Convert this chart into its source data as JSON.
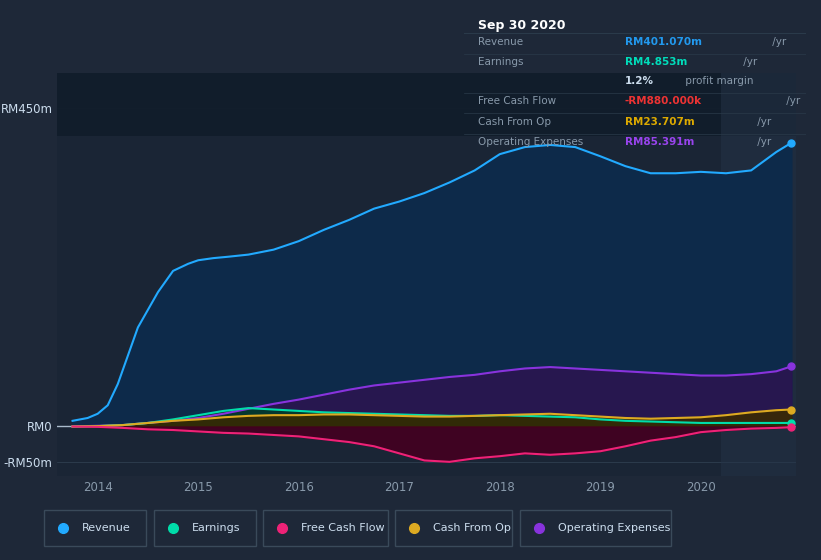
{
  "bg_color": "#1e2838",
  "plot_bg_color": "#1a2535",
  "text_color": "#8899aa",
  "ylim": [
    -70,
    500
  ],
  "ytick_positions": [
    -50,
    0,
    450
  ],
  "ytick_labels": [
    "-RM50m",
    "RM0",
    "RM450m"
  ],
  "xtick_positions": [
    2014,
    2015,
    2016,
    2017,
    2018,
    2019,
    2020
  ],
  "xlim": [
    2013.6,
    2020.95
  ],
  "info_box": {
    "title": "Sep 30 2020",
    "rows": [
      {
        "label": "Revenue",
        "value": "RM401.070m",
        "unit": " /yr",
        "val_color": "#2299ee"
      },
      {
        "label": "Earnings",
        "value": "RM4.853m",
        "unit": " /yr",
        "val_color": "#00ddbb"
      },
      {
        "label": "",
        "value": "1.2%",
        "unit": " profit margin",
        "val_color": "#ccddee"
      },
      {
        "label": "Free Cash Flow",
        "value": "-RM880.000k",
        "unit": " /yr",
        "val_color": "#ee3333"
      },
      {
        "label": "Cash From Op",
        "value": "RM23.707m",
        "unit": " /yr",
        "val_color": "#ddaa00"
      },
      {
        "label": "Operating Expenses",
        "value": "RM85.391m",
        "unit": " /yr",
        "val_color": "#9944ee"
      }
    ]
  },
  "revenue": {
    "color": "#22aaff",
    "fill": "#0d2a4a",
    "x": [
      2013.75,
      2013.9,
      2014.0,
      2014.1,
      2014.2,
      2014.4,
      2014.6,
      2014.75,
      2014.9,
      2015.0,
      2015.15,
      2015.3,
      2015.5,
      2015.75,
      2016.0,
      2016.25,
      2016.5,
      2016.75,
      2017.0,
      2017.25,
      2017.5,
      2017.75,
      2018.0,
      2018.25,
      2018.5,
      2018.75,
      2019.0,
      2019.25,
      2019.5,
      2019.75,
      2020.0,
      2020.25,
      2020.5,
      2020.75,
      2020.9
    ],
    "y": [
      8,
      12,
      18,
      30,
      60,
      140,
      190,
      220,
      230,
      235,
      238,
      240,
      243,
      250,
      262,
      278,
      292,
      308,
      318,
      330,
      345,
      362,
      385,
      395,
      398,
      395,
      382,
      368,
      358,
      358,
      360,
      358,
      362,
      388,
      401
    ]
  },
  "operating_expenses": {
    "color": "#8833dd",
    "fill": "#2a1550",
    "x": [
      2013.75,
      2014.0,
      2014.25,
      2014.5,
      2014.75,
      2015.0,
      2015.25,
      2015.5,
      2015.75,
      2016.0,
      2016.25,
      2016.5,
      2016.75,
      2017.0,
      2017.25,
      2017.5,
      2017.75,
      2018.0,
      2018.25,
      2018.5,
      2018.75,
      2019.0,
      2019.25,
      2019.5,
      2019.75,
      2020.0,
      2020.25,
      2020.5,
      2020.75,
      2020.9
    ],
    "y": [
      0,
      1,
      2,
      5,
      8,
      12,
      18,
      25,
      32,
      38,
      45,
      52,
      58,
      62,
      66,
      70,
      73,
      78,
      82,
      84,
      82,
      80,
      78,
      76,
      74,
      72,
      72,
      74,
      78,
      85
    ]
  },
  "earnings": {
    "color": "#00ddaa",
    "fill": "#003d2a",
    "x": [
      2013.75,
      2014.0,
      2014.25,
      2014.5,
      2014.75,
      2015.0,
      2015.25,
      2015.5,
      2015.75,
      2016.0,
      2016.25,
      2016.5,
      2016.75,
      2017.0,
      2017.25,
      2017.5,
      2017.75,
      2018.0,
      2018.25,
      2018.5,
      2018.75,
      2019.0,
      2019.25,
      2019.5,
      2019.75,
      2020.0,
      2020.25,
      2020.5,
      2020.75,
      2020.9
    ],
    "y": [
      0,
      0.5,
      2,
      5,
      10,
      16,
      22,
      26,
      24,
      22,
      20,
      19,
      18,
      17,
      16,
      15,
      15,
      16,
      15,
      14,
      13,
      10,
      8,
      7,
      6,
      5,
      5,
      5,
      5,
      5
    ]
  },
  "cash_from_op": {
    "color": "#ddaa22",
    "fill": "#3a2a00",
    "x": [
      2013.75,
      2014.0,
      2014.25,
      2014.5,
      2014.75,
      2015.0,
      2015.25,
      2015.5,
      2015.75,
      2016.0,
      2016.25,
      2016.5,
      2016.75,
      2017.0,
      2017.25,
      2017.5,
      2017.75,
      2018.0,
      2018.25,
      2018.5,
      2018.75,
      2019.0,
      2019.25,
      2019.5,
      2019.75,
      2020.0,
      2020.25,
      2020.5,
      2020.75,
      2020.9
    ],
    "y": [
      0,
      0.5,
      2,
      5,
      8,
      10,
      13,
      15,
      16,
      16,
      17,
      17,
      16,
      15,
      14,
      14,
      15,
      16,
      17,
      18,
      16,
      14,
      12,
      11,
      12,
      13,
      16,
      20,
      23,
      24
    ]
  },
  "free_cash_flow": {
    "color": "#ee2277",
    "fill": "#440020",
    "x": [
      2013.75,
      2014.0,
      2014.25,
      2014.5,
      2014.75,
      2015.0,
      2015.25,
      2015.5,
      2015.75,
      2016.0,
      2016.25,
      2016.5,
      2016.75,
      2017.0,
      2017.25,
      2017.5,
      2017.75,
      2018.0,
      2018.25,
      2018.5,
      2018.75,
      2019.0,
      2019.25,
      2019.5,
      2019.75,
      2020.0,
      2020.25,
      2020.5,
      2020.75,
      2020.9
    ],
    "y": [
      0,
      -0.5,
      -2,
      -4,
      -5,
      -7,
      -9,
      -10,
      -12,
      -14,
      -18,
      -22,
      -28,
      -38,
      -48,
      -50,
      -45,
      -42,
      -38,
      -40,
      -38,
      -35,
      -28,
      -20,
      -15,
      -8,
      -5,
      -3,
      -2,
      -1
    ]
  },
  "legend": [
    {
      "label": "Revenue",
      "color": "#22aaff"
    },
    {
      "label": "Earnings",
      "color": "#00ddaa"
    },
    {
      "label": "Free Cash Flow",
      "color": "#ee2277"
    },
    {
      "label": "Cash From Op",
      "color": "#ddaa22"
    },
    {
      "label": "Operating Expenses",
      "color": "#8833dd"
    }
  ]
}
